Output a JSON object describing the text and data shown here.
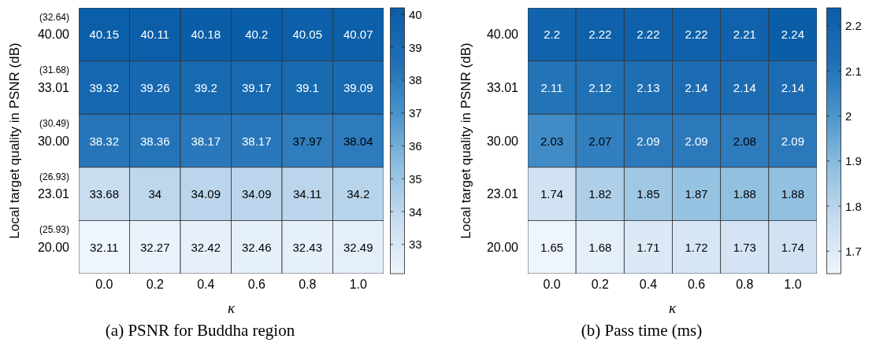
{
  "chart_data": [
    {
      "type": "heatmap",
      "title": "(a) PSNR for Buddha region",
      "xlabel": "κ",
      "ylabel": "Local target quality in PSNR (dB)",
      "categories": [
        "0.0",
        "0.2",
        "0.4",
        "0.6",
        "0.8",
        "1.0"
      ],
      "y_categories": [
        "40.00",
        "33.01",
        "30.00",
        "23.01",
        "20.00"
      ],
      "cells": [
        [
          40.15,
          40.11,
          40.18,
          40.2,
          40.05,
          40.07
        ],
        [
          39.32,
          39.26,
          39.2,
          39.17,
          39.1,
          39.09
        ],
        [
          38.32,
          38.36,
          38.17,
          38.17,
          37.97,
          38.04
        ],
        [
          33.68,
          34,
          34.09,
          34.09,
          34.11,
          34.2
        ],
        [
          32.11,
          32.27,
          32.42,
          32.46,
          32.43,
          32.49
        ]
      ],
      "data_labels": true,
      "clim": [
        32.11,
        40.2
      ],
      "cticks": [
        33,
        34,
        35,
        36,
        37,
        38,
        39,
        40
      ],
      "annotations": [
        "(32.64)",
        "(31.68)",
        "(30.49)",
        "(26.93)",
        "(25.93)"
      ]
    },
    {
      "type": "heatmap",
      "title": "(b) Pass time (ms)",
      "xlabel": "κ",
      "ylabel": "Local target quality in PSNR (dB)",
      "categories": [
        "0.0",
        "0.2",
        "0.4",
        "0.6",
        "0.8",
        "1.0"
      ],
      "y_categories": [
        "40.00",
        "33.01",
        "30.00",
        "23.01",
        "20.00"
      ],
      "cells": [
        [
          2.2,
          2.22,
          2.22,
          2.22,
          2.21,
          2.24
        ],
        [
          2.11,
          2.12,
          2.13,
          2.14,
          2.14,
          2.14
        ],
        [
          2.03,
          2.07,
          2.09,
          2.09,
          2.08,
          2.09
        ],
        [
          1.74,
          1.82,
          1.85,
          1.87,
          1.88,
          1.88
        ],
        [
          1.65,
          1.68,
          1.71,
          1.72,
          1.73,
          1.74
        ]
      ],
      "data_labels": true,
      "clim": [
        1.65,
        2.24
      ],
      "cticks": [
        1.7,
        1.8,
        1.9,
        2,
        2.1,
        2.2
      ]
    }
  ]
}
